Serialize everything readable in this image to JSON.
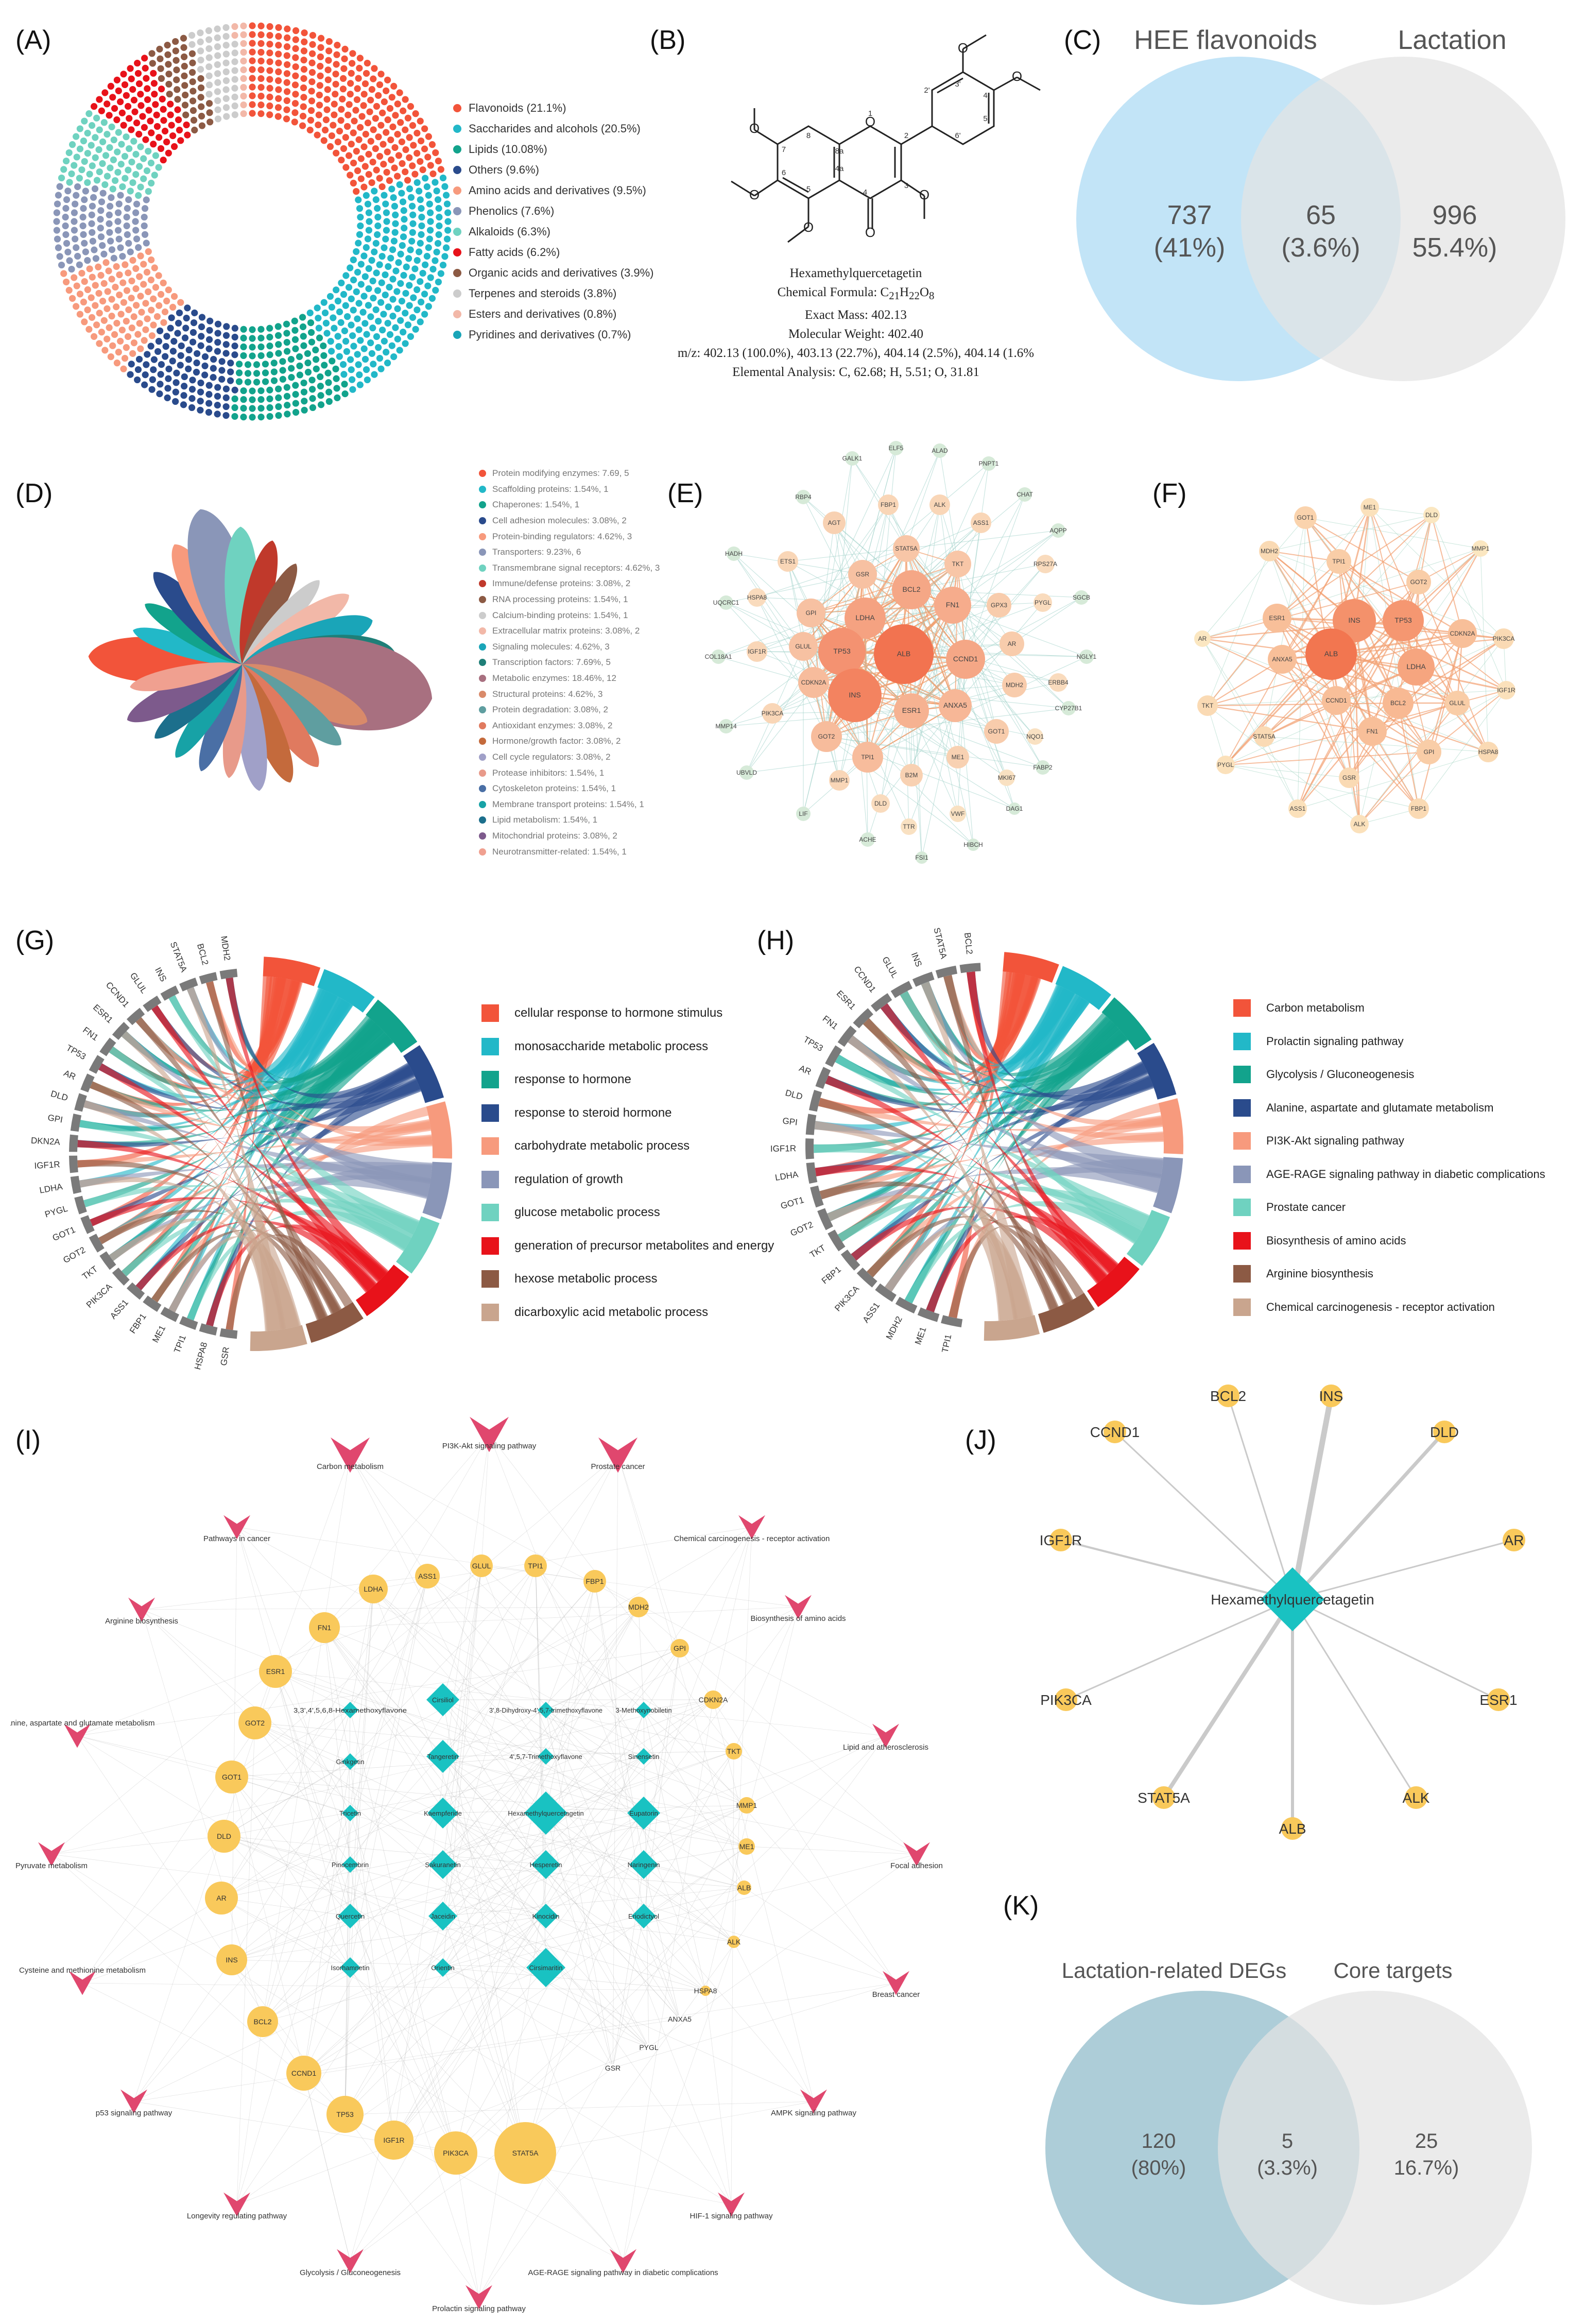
{
  "panel_labels": {
    "A": "(A)",
    "B": "(B)",
    "C": "(C)",
    "D": "(D)",
    "E": "(E)",
    "F": "(F)",
    "G": "(G)",
    "H": "(H)",
    "I": "(I)",
    "J": "(J)",
    "K": "(K)"
  },
  "colors": {
    "red_orange": "#f2543a",
    "teal": "#22b8c8",
    "green_teal": "#12a38c",
    "navy": "#2a4b8c",
    "salmon": "#f79a7d",
    "slate": "#8a96b8",
    "mint": "#6fd2c0",
    "red": "#e8121a",
    "brown": "#8c5a44",
    "tan": "#c9a58e",
    "venn_blue": "#bfe3f7",
    "venn_gray": "#e6e6e6",
    "venn_k_blue": "#a9cad6",
    "hub_teal": "#19c2c2",
    "node_yellow": "#f9c95b",
    "pathway_pink": "#e0476e"
  },
  "chart_data": [
    {
      "id": "A",
      "type": "pie",
      "style": "dot-donut",
      "categories": [
        "Flavonoids",
        "Saccharides and alcohols",
        "Lipids",
        "Others",
        "Amino acids and derivatives",
        "Phenolics",
        "Alkaloids",
        "Fatty acids",
        "Organic acids and derivatives",
        "Terpenes and steroids",
        "Esters and derivatives",
        "Pyridines and derivatives"
      ],
      "values": [
        21.1,
        20.5,
        10.08,
        9.6,
        9.5,
        7.6,
        6.3,
        6.2,
        3.9,
        3.8,
        0.8,
        0.7
      ],
      "legend": [
        "Flavonoids (21.1%)",
        "Saccharides and alcohols (20.5%)",
        "Lipids (10.08%)",
        "Others (9.6%)",
        "Amino acids and derivatives (9.5%)",
        "Phenolics (7.6%)",
        "Alkaloids (6.3%)",
        "Fatty acids (6.2%)",
        "Organic acids and derivatives (3.9%)",
        "Terpenes and steroids (3.8%)",
        "Esters and derivatives (0.8%)",
        "Pyridines and derivatives (0.7%)"
      ],
      "colors": [
        "#f2543a",
        "#22b8c8",
        "#12a38c",
        "#2a4b8c",
        "#f79a7d",
        "#8a96b8",
        "#6fd2c0",
        "#e8121a",
        "#8c5a44",
        "#cccccc",
        "#f2b8a8",
        "#1aa5b8"
      ]
    },
    {
      "id": "C",
      "type": "venn",
      "set_labels": [
        "HEE flavonoids",
        "Lactation"
      ],
      "left_count": "737",
      "left_pct": "(41%)",
      "overlap_count": "65",
      "overlap_pct": "(3.6%)",
      "right_count": "996",
      "right_pct": "55.4%)"
    },
    {
      "id": "D",
      "type": "pie",
      "style": "petal",
      "categories": [
        "Protein modifying enzymes",
        "Scaffolding proteins",
        "Chaperones",
        "Cell adhesion molecules",
        "Protein-binding regulators",
        "Transporters",
        "Transmembrane signal receptors",
        "Immune/defense proteins",
        "RNA processing proteins",
        "Calcium-binding proteins",
        "Extracellular matrix proteins",
        "Signaling molecules",
        "Transcription factors",
        "Metabolic enzymes",
        "Structural proteins",
        "Protein degradation",
        "Antioxidant enzymes",
        "Hormone/growth factor",
        "Cell cycle regulators",
        "Protease inhibitors",
        "Cytoskeleton proteins",
        "Membrane transport proteins",
        "Lipid metabolism",
        "Mitochondrial proteins",
        "Neurotransmitter-related"
      ],
      "values": [
        5,
        1,
        1,
        2,
        3,
        6,
        3,
        2,
        1,
        1,
        2,
        3,
        5,
        12,
        3,
        2,
        2,
        2,
        2,
        1,
        1,
        1,
        1,
        2,
        1
      ],
      "legend": [
        "Protein modifying enzymes: 7.69, 5",
        "Scaffolding proteins: 1.54%, 1",
        "Chaperones: 1.54%, 1",
        "Cell adhesion molecules: 3.08%, 2",
        "Protein-binding regulators: 4.62%, 3",
        "Transporters: 9.23%, 6",
        "Transmembrane signal receptors: 4.62%, 3",
        "Immune/defense proteins: 3.08%, 2",
        "RNA processing proteins: 1.54%, 1",
        "Calcium-binding proteins: 1.54%, 1",
        "Extracellular matrix proteins: 3.08%, 2",
        "Signaling molecules: 4.62%, 3",
        "Transcription factors: 7.69%, 5",
        "Metabolic enzymes: 18.46%, 12",
        "Structural proteins: 4.62%, 3",
        "Protein degradation: 3.08%, 2",
        "Antioxidant enzymes: 3.08%, 2",
        "Hormone/growth factor: 3.08%, 2",
        "Cell cycle regulators: 3.08%, 2",
        "Protease inhibitors: 1.54%, 1",
        "Cytoskeleton proteins: 1.54%, 1",
        "Membrane transport proteins: 1.54%, 1",
        "Lipid metabolism: 1.54%, 1",
        "Mitochondrial proteins: 3.08%, 2",
        "Neurotransmitter-related: 1.54%, 1"
      ],
      "colors": [
        "#f2543a",
        "#22b8c8",
        "#12a38c",
        "#2a4b8c",
        "#f79a7d",
        "#8a96b8",
        "#6fd2c0",
        "#c0392b",
        "#8c5a44",
        "#cccccc",
        "#f2b8a8",
        "#1aa5b8",
        "#1f7f78",
        "#a87080",
        "#d98a6a",
        "#5f9ea0",
        "#e07a5f",
        "#c46a3c",
        "#a0a0c8",
        "#e89a8a",
        "#4a6fa5",
        "#17a2a6",
        "#1c6f8c",
        "#7d5a8c",
        "#f0a090"
      ]
    },
    {
      "id": "G",
      "type": "chord",
      "genes": [
        "GSR",
        "HSPA8",
        "TPI1",
        "ME1",
        "FBP1",
        "ASS1",
        "PIK3CA",
        "TKT",
        "GOT2",
        "GOT1",
        "PYGL",
        "LDHA",
        "IGF1R",
        "CDKN2A",
        "GPI",
        "DLD",
        "AR",
        "TP53",
        "FN1",
        "ESR1",
        "CCND1",
        "GLUL",
        "INS",
        "STAT5A",
        "BCL2",
        "MDH2"
      ],
      "terms": [
        "cellular response to hormone stimulus",
        "monosaccharide metabolic process",
        "response to hormone",
        "response to steroid hormone",
        "carbohydrate metabolic process",
        "regulation of growth",
        "glucose metabolic process",
        "generation of precursor metabolites and energy",
        "hexose metabolic process",
        "dicarboxylic acid metabolic process"
      ],
      "colors": [
        "#f2543a",
        "#22b8c8",
        "#12a38c",
        "#2a4b8c",
        "#f79a7d",
        "#8a96b8",
        "#6fd2c0",
        "#e8121a",
        "#8c5a44",
        "#c9a58e"
      ]
    },
    {
      "id": "H",
      "type": "chord",
      "genes": [
        "TPI1",
        "ME1",
        "MDH2",
        "ASS1",
        "PIK3CA",
        "FBP1",
        "TKT",
        "GOT2",
        "GOT1",
        "LDHA",
        "IGF1R",
        "GPI",
        "DLD",
        "AR",
        "TP53",
        "FN1",
        "ESR1",
        "CCND1",
        "GLUL",
        "INS",
        "STAT5A",
        "BCL2"
      ],
      "terms": [
        "Carbon metabolism",
        "Prolactin signaling pathway",
        "Glycolysis / Gluconeogenesis",
        "Alanine, aspartate and glutamate metabolism",
        "PI3K-Akt signaling pathway",
        "AGE-RAGE signaling pathway in diabetic complications",
        "Prostate cancer",
        "Biosynthesis of amino acids",
        "Arginine biosynthesis",
        "Chemical carcinogenesis - receptor activation"
      ],
      "colors": [
        "#f2543a",
        "#22b8c8",
        "#12a38c",
        "#2a4b8c",
        "#f79a7d",
        "#8a96b8",
        "#6fd2c0",
        "#e8121a",
        "#8c5a44",
        "#c9a58e"
      ]
    },
    {
      "id": "K",
      "type": "venn",
      "set_labels": [
        "Lactation-related DEGs",
        "Core targets"
      ],
      "left_count": "120",
      "left_pct": "(80%)",
      "overlap_count": "5",
      "overlap_pct": "(3.3%)",
      "right_count": "25",
      "right_pct": "16.7%)"
    }
  ],
  "molecule": {
    "name": "Hexamethylquercetagetin",
    "formula_prefix": "Chemical Formula: C",
    "formula_c": "21",
    "formula_h_label": "H",
    "formula_h": "22",
    "formula_o_label": "O",
    "formula_o": "8",
    "exact_mass": "Exact Mass: 402.13",
    "mol_weight": "Molecular Weight: 402.40",
    "mz": "m/z: 402.13 (100.0%), 403.13 (22.7%), 404.14 (2.5%), 404.14 (1.6%",
    "elemental": "Elemental Analysis: C, 62.68; H, 5.51; O, 31.81",
    "atom_labels": [
      "O",
      "O",
      "O",
      "O",
      "O",
      "O",
      "O",
      "O"
    ],
    "ring_numbers": [
      "1",
      "2",
      "3",
      "4",
      "4a",
      "5",
      "6",
      "7",
      "8",
      "8a",
      "2'",
      "3'",
      "4'",
      "5'",
      "6'"
    ]
  },
  "network_E": {
    "nodes": [
      "GALK1",
      "ELF5",
      "ALAD",
      "PNPT1",
      "RBP4",
      "AGT",
      "FBP1",
      "ALK",
      "ASS1",
      "CHAT",
      "AQPP",
      "HADH",
      "ETS1",
      "STAT5A",
      "RPS27A",
      "GSR",
      "TKT",
      "GPX3",
      "PYGL",
      "SGCB",
      "HSPA8",
      "UQCRC1",
      "GPI",
      "BCL2",
      "FN1",
      "AR",
      "NGLY1",
      "COL18A1",
      "IGF1R",
      "GLUL",
      "LDHA",
      "ALB",
      "CCND1",
      "ERBB4",
      "CDKN2A",
      "TP53",
      "MDH2",
      "INS",
      "ANXA5",
      "MMP14",
      "PIK3CA",
      "ESR1",
      "GOT2",
      "GOT1",
      "NQO1",
      "CYP27B1",
      "UBVLD",
      "TPI1",
      "ME1",
      "MKI67",
      "FABP2",
      "MMP1",
      "B2M",
      "DLD",
      "VWF",
      "DAG1",
      "LIF",
      "ACHE",
      "TTR",
      "FSI1",
      "HIBCH"
    ]
  },
  "network_F": {
    "nodes": [
      "GOT1",
      "ME1",
      "DLD",
      "MMP1",
      "MDH2",
      "TPI1",
      "GOT2",
      "ESR1",
      "INS",
      "TP53",
      "CDKN2A",
      "PIK3CA",
      "AR",
      "ANXA5",
      "ALB",
      "LDHA",
      "IGF1R",
      "TKT",
      "CCND1",
      "BCL2",
      "GLUL",
      "STAT5A",
      "FN1",
      "GPI",
      "HSPA8",
      "PYGL",
      "GSR",
      "ASS1",
      "ALK",
      "FBP1"
    ]
  },
  "network_I": {
    "pathways": [
      "Carbon metabolism",
      "PI3K-Akt signaling pathway",
      "Prostate cancer",
      "Pathways in cancer",
      "Chemical carcinogenesis - receptor activation",
      "Arginine biosynthesis",
      "Biosynthesis of amino acids",
      "Alanine, aspartate and glutamate metabolism",
      "Lipid and atherosclerosis",
      "Pyruvate metabolism",
      "Focal adhesion",
      "Cysteine and methionine metabolism",
      "Breast cancer",
      "p53 signaling pathway",
      "AMPK signaling pathway",
      "Longevity regulating pathway",
      "HIF-1 signaling pathway",
      "Glycolysis / Gluconeogenesis",
      "Prolactin signaling pathway",
      "AGE-RAGE signaling pathway in diabetic complications"
    ],
    "compounds": [
      "3,3',4',5,6,8-Hexamethoxyflavone",
      "Cirsiliol",
      "Ginkgetin",
      "Tangeretin",
      "Tricetin",
      "Kaempferide",
      "Pinocembrin",
      "Hexamethylquercetagetin",
      "Eupatorin",
      "Sakuranetin",
      "Hesperetin",
      "Naringenin",
      "Quercetin",
      "Jaceidin",
      "Kinocidin",
      "Eriodictyol",
      "Isorhamnetin",
      "Orientin",
      "Cirsimaritin",
      "3',8-Dihydroxy-4',5,7-trimethoxyflavone",
      "4',5,7-Trimethoxyflavone",
      "3-Methoxynobiletin",
      "Sinensetin"
    ],
    "genes": [
      "ASS1",
      "GLUL",
      "TPI1",
      "FBP1",
      "LDHA",
      "MDH2",
      "FN1",
      "GPI",
      "ESR1",
      "CDKN2A",
      "GOT2",
      "TKT",
      "GOT1",
      "MMP1",
      "DLD",
      "ME1",
      "AR",
      "ALB",
      "INS",
      "ALK",
      "BCL2",
      "HSPA8",
      "CCND1",
      "ANXA5",
      "TP53",
      "PYGL",
      "IGF1R",
      "GSR",
      "PIK3CA",
      "STAT5A"
    ]
  },
  "network_J": {
    "hub": "Hexamethylquercetagetin",
    "nodes": [
      "BCL2",
      "INS",
      "CCND1",
      "DLD",
      "IGF1R",
      "AR",
      "PIK3CA",
      "ESR1",
      "STAT5A",
      "ALK",
      "ALB"
    ]
  }
}
